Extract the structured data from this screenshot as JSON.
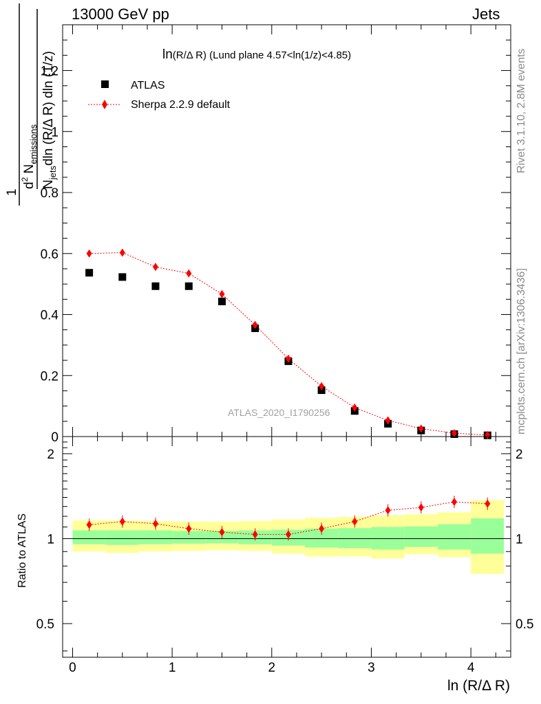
{
  "header": {
    "left": "13000 GeV pp",
    "right": "Jets"
  },
  "side_text": {
    "rivet": "Rivet 3.1.10,  2.8M events",
    "mcplots": "mcplots.cern.ch [arXiv:1306.3436]"
  },
  "chart_data": [
    {
      "type": "scatter",
      "title": "ln(R/Δ R) (Lund plane 4.57<ln(1/z)<4.85)",
      "title_prefix": "ln",
      "title_rest": "(R/Δ R) (Lund plane 4.57<ln(1/z)<4.85)",
      "ylabel_numerator_prefix": "d",
      "ylabel_numerator_sup": "2",
      "ylabel_numerator_main": "N",
      "ylabel_numerator_sub": "emissions",
      "ylabel_denominator_main": "N",
      "ylabel_denominator_sub": "jets",
      "ylabel_denominator_rest": "dln (R/Δ R) dln (1/z)",
      "ylabel_prefactor": "1",
      "watermark": "ATLAS_2020_I1790256",
      "xlim": [
        -0.1,
        4.4
      ],
      "ylim": [
        0,
        1.35
      ],
      "yticks": [
        "0",
        "0.2",
        "0.4",
        "0.6",
        "0.8",
        "1",
        "1.2"
      ],
      "legend_position": "top-left",
      "series": [
        {
          "name": "ATLAS",
          "marker": "square",
          "color": "#000000",
          "x": [
            0.167,
            0.5,
            0.833,
            1.167,
            1.5,
            1.833,
            2.167,
            2.5,
            2.833,
            3.167,
            3.5,
            3.833,
            4.167
          ],
          "y": [
            0.537,
            0.523,
            0.493,
            0.493,
            0.443,
            0.355,
            0.247,
            0.152,
            0.084,
            0.042,
            0.02,
            0.008,
            0.004
          ]
        },
        {
          "name": "Sherpa 2.2.9 default",
          "marker": "diamond",
          "line": "dotted",
          "color": "#ff0000",
          "x": [
            0.167,
            0.5,
            0.833,
            1.167,
            1.5,
            1.833,
            2.167,
            2.5,
            2.833,
            3.167,
            3.5,
            3.833,
            4.167
          ],
          "y": [
            0.6,
            0.603,
            0.556,
            0.535,
            0.467,
            0.366,
            0.255,
            0.165,
            0.095,
            0.053,
            0.026,
            0.011,
            0.005
          ]
        }
      ]
    },
    {
      "type": "scatter",
      "ylabel": "Ratio to ATLAS",
      "xlabel": "ln (R/Δ R)",
      "xlim": [
        -0.1,
        4.4
      ],
      "ylim": [
        0.38,
        2.3
      ],
      "yticks": [
        "0.5",
        "1",
        "2"
      ],
      "xticks": [
        "0",
        "1",
        "2",
        "3",
        "4"
      ],
      "reference_line": 1,
      "bands": {
        "x_edges": [
          0.0,
          0.333,
          0.667,
          1.0,
          1.333,
          1.667,
          2.0,
          2.333,
          2.667,
          3.0,
          3.333,
          3.667,
          4.0,
          4.333
        ],
        "yellow_low": [
          0.9,
          0.89,
          0.9,
          0.905,
          0.91,
          0.905,
          0.885,
          0.865,
          0.865,
          0.85,
          0.88,
          0.86,
          0.75
        ],
        "yellow_high": [
          1.16,
          1.16,
          1.155,
          1.15,
          1.15,
          1.155,
          1.17,
          1.185,
          1.195,
          1.21,
          1.22,
          1.24,
          1.37
        ],
        "green_low": [
          0.955,
          0.95,
          0.955,
          0.96,
          0.962,
          0.955,
          0.945,
          0.93,
          0.925,
          0.915,
          0.935,
          0.915,
          0.885
        ],
        "green_high": [
          1.07,
          1.07,
          1.07,
          1.065,
          1.065,
          1.07,
          1.075,
          1.085,
          1.09,
          1.1,
          1.105,
          1.125,
          1.18
        ]
      },
      "series": [
        {
          "name": "Sherpa 2.2.9 default",
          "marker": "diamond",
          "line": "dotted",
          "color": "#ff0000",
          "x": [
            0.167,
            0.5,
            0.833,
            1.167,
            1.5,
            1.833,
            2.167,
            2.5,
            2.833,
            3.167,
            3.5,
            3.833,
            4.167
          ],
          "y": [
            1.12,
            1.15,
            1.13,
            1.085,
            1.055,
            1.035,
            1.035,
            1.085,
            1.15,
            1.26,
            1.29,
            1.35,
            1.33
          ]
        }
      ]
    }
  ]
}
